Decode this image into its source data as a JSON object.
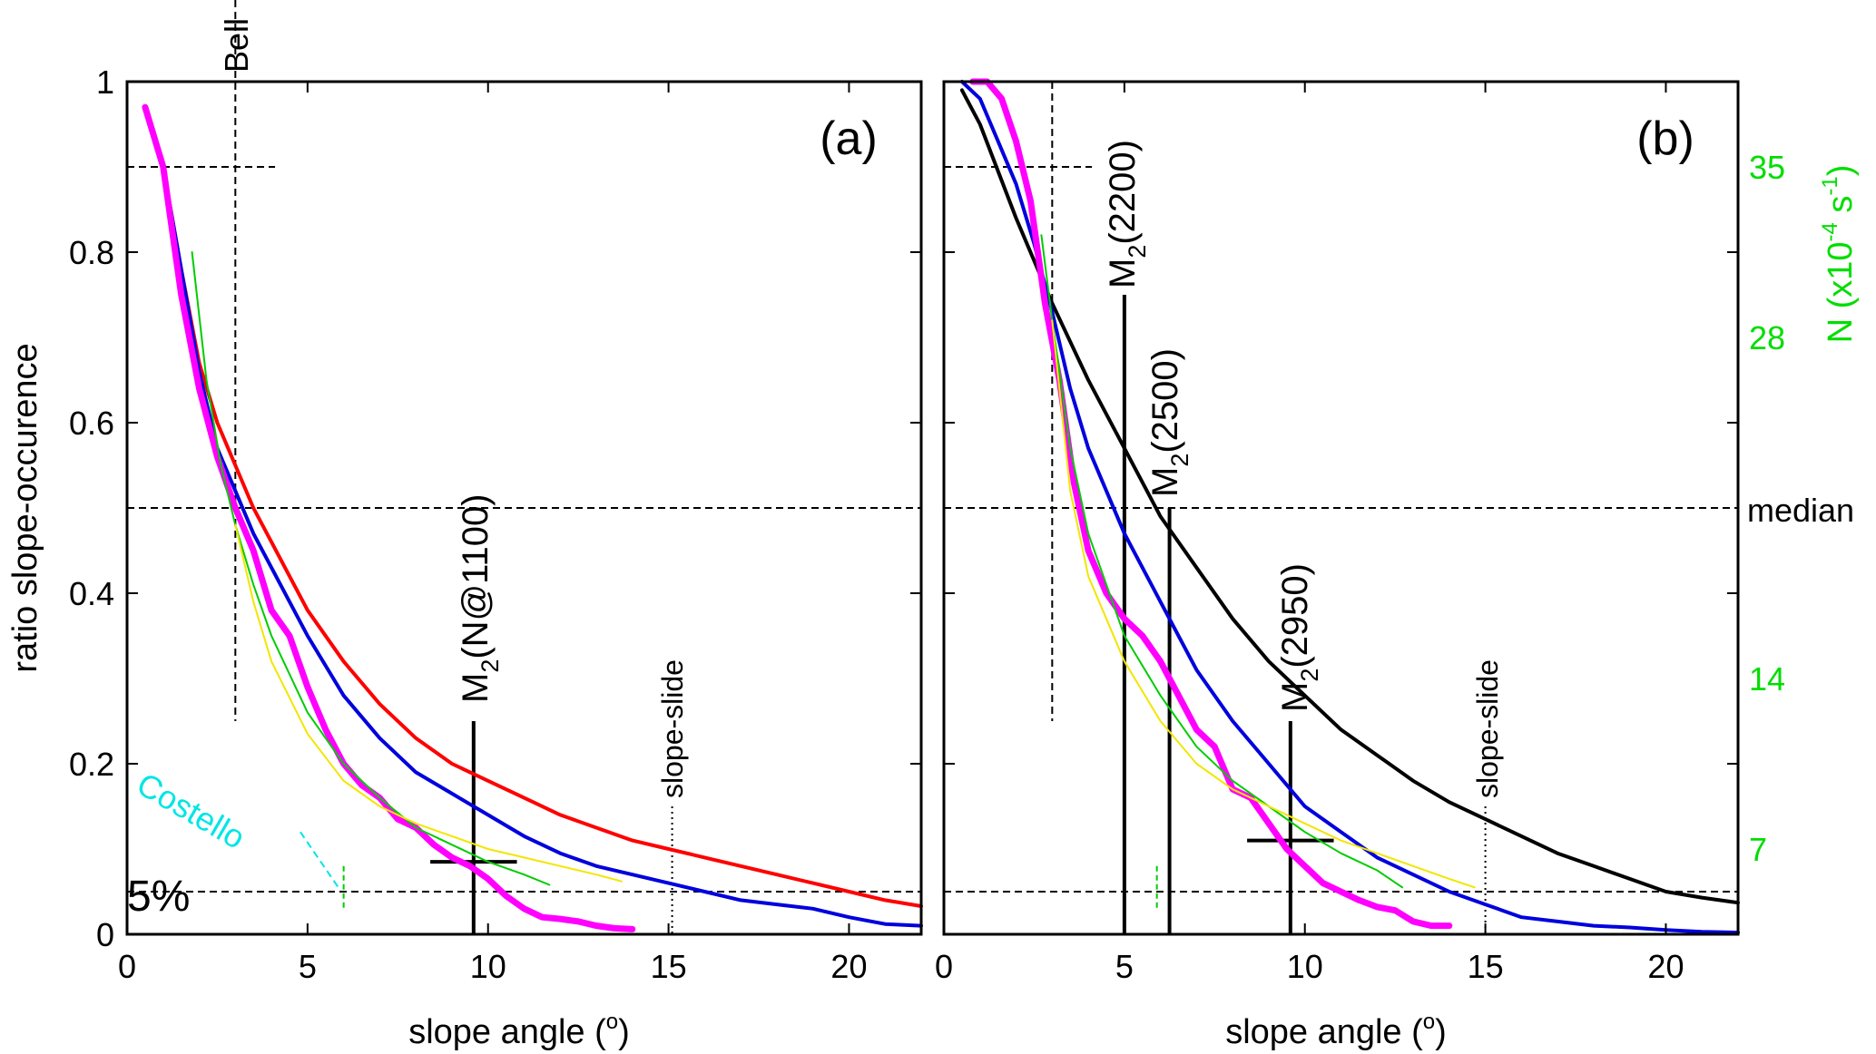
{
  "chart_data": [
    {
      "type": "line",
      "panel_label": "(a)",
      "xlabel": "slope angle (o)",
      "ylabel": "ratio slope-occurence",
      "xlim": [
        0,
        22
      ],
      "ylim": [
        0,
        1
      ],
      "xticks": [
        "0",
        "5",
        "10",
        "15",
        "20"
      ],
      "yticks": [
        "0",
        "0.2",
        "0.4",
        "0.6",
        "0.8",
        "1"
      ],
      "grid": false,
      "series": [
        {
          "color": "#ff0000",
          "x": [
            0.5,
            1,
            1.5,
            2,
            2.5,
            3,
            3.5,
            4,
            5,
            6,
            7,
            8,
            9,
            10,
            11,
            12,
            13,
            14,
            15,
            16,
            17,
            18,
            19,
            20,
            21,
            22
          ],
          "y": [
            0.97,
            0.9,
            0.78,
            0.67,
            0.6,
            0.55,
            0.5,
            0.46,
            0.38,
            0.32,
            0.27,
            0.23,
            0.2,
            0.18,
            0.16,
            0.14,
            0.125,
            0.11,
            0.1,
            0.09,
            0.08,
            0.07,
            0.06,
            0.05,
            0.04,
            0.033
          ]
        },
        {
          "color": "#0000dd",
          "x": [
            0.5,
            1,
            1.5,
            2,
            2.5,
            3,
            3.5,
            4,
            5,
            6,
            7,
            8,
            9,
            10,
            11,
            12,
            13,
            14,
            15,
            16,
            17,
            18,
            19,
            20,
            21,
            22
          ],
          "y": [
            0.97,
            0.9,
            0.78,
            0.66,
            0.57,
            0.52,
            0.47,
            0.43,
            0.35,
            0.28,
            0.23,
            0.19,
            0.165,
            0.14,
            0.115,
            0.095,
            0.08,
            0.07,
            0.06,
            0.05,
            0.04,
            0.035,
            0.03,
            0.02,
            0.012,
            0.01
          ]
        },
        {
          "color": "#ff00ff",
          "x": [
            0.5,
            1,
            1.5,
            2,
            2.5,
            3,
            3.5,
            4,
            4.5,
            5,
            5.5,
            6,
            6.5,
            7,
            7.5,
            8,
            8.5,
            9,
            9.5,
            10,
            10.5,
            11,
            11.5,
            12,
            12.5,
            13,
            13.5,
            14
          ],
          "y": [
            0.97,
            0.9,
            0.75,
            0.64,
            0.56,
            0.5,
            0.45,
            0.38,
            0.35,
            0.29,
            0.24,
            0.2,
            0.175,
            0.16,
            0.135,
            0.125,
            0.105,
            0.09,
            0.08,
            0.065,
            0.045,
            0.03,
            0.02,
            0.018,
            0.015,
            0.01,
            0.007,
            0.006
          ]
        },
        {
          "color": "#00cc00",
          "x": [
            1.8,
            2.2,
            2.6,
            3,
            3.5,
            4,
            5,
            6,
            7,
            8,
            9,
            10,
            11,
            11.7
          ],
          "y": [
            0.8,
            0.65,
            0.55,
            0.48,
            0.41,
            0.35,
            0.26,
            0.2,
            0.16,
            0.125,
            0.105,
            0.085,
            0.07,
            0.058
          ]
        },
        {
          "color": "#f2e600",
          "x": [
            3,
            3.5,
            4,
            5,
            6,
            7,
            8,
            9,
            10,
            11,
            12,
            13,
            13.7
          ],
          "y": [
            0.48,
            0.39,
            0.32,
            0.235,
            0.18,
            0.15,
            0.13,
            0.115,
            0.1,
            0.09,
            0.08,
            0.07,
            0.062
          ]
        }
      ],
      "annotations": {
        "bell": "Bell",
        "costello": "Costello",
        "five_percent": "5%",
        "m2_main": "M",
        "m2_sub": "2",
        "m2_rest": "(N@1100)",
        "slope_slide": "slope-slide",
        "m2_line_x": 9.6,
        "m2_line_ymax": 0.25,
        "m2_cross_y": 0.085,
        "slope_slide_x": 15.1,
        "bell_x": 3
      }
    },
    {
      "type": "line",
      "panel_label": "(b)",
      "xlabel": "slope angle (o)",
      "right_ylabel": "N (x10-4 s-1)",
      "xlim": [
        0,
        22
      ],
      "ylim": [
        0,
        1
      ],
      "xticks": [
        "0",
        "5",
        "10",
        "15",
        "20"
      ],
      "right_yticks": [
        {
          "label": "7",
          "y": 0.1
        },
        {
          "label": "14",
          "y": 0.3
        },
        {
          "label": "28",
          "y": 0.7
        },
        {
          "label": "35",
          "y": 0.9
        }
      ],
      "median_label": "median",
      "median_y": 0.5,
      "grid": false,
      "series": [
        {
          "color": "#000000",
          "x": [
            0.5,
            1,
            2,
            3,
            4,
            5,
            6,
            7,
            8,
            9,
            10,
            11,
            12,
            13,
            14,
            15,
            16,
            17,
            18,
            19,
            20,
            21,
            22
          ],
          "y": [
            0.99,
            0.95,
            0.84,
            0.74,
            0.65,
            0.57,
            0.49,
            0.43,
            0.37,
            0.32,
            0.28,
            0.24,
            0.21,
            0.18,
            0.155,
            0.135,
            0.115,
            0.095,
            0.08,
            0.065,
            0.05,
            0.043,
            0.037
          ]
        },
        {
          "color": "#0000dd",
          "x": [
            0.5,
            1,
            1.5,
            2,
            2.5,
            3,
            3.5,
            4,
            5,
            6,
            7,
            8,
            9,
            10,
            11,
            12,
            13,
            14,
            15,
            16,
            17,
            18,
            19,
            20,
            21,
            22
          ],
          "y": [
            1.0,
            0.98,
            0.93,
            0.88,
            0.81,
            0.73,
            0.64,
            0.57,
            0.47,
            0.39,
            0.31,
            0.25,
            0.2,
            0.15,
            0.12,
            0.09,
            0.07,
            0.05,
            0.035,
            0.02,
            0.015,
            0.01,
            0.008,
            0.005,
            0.003,
            0.002
          ]
        },
        {
          "color": "#ff00ff",
          "x": [
            0.8,
            1.2,
            1.6,
            2,
            2.4,
            2.8,
            3.2,
            3.6,
            4,
            4.5,
            5,
            5.5,
            6,
            6.5,
            7,
            7.5,
            8,
            8.5,
            9,
            9.5,
            10,
            10.5,
            11,
            11.5,
            12,
            12.5,
            13,
            13.5,
            14
          ],
          "y": [
            1.0,
            1.0,
            0.98,
            0.93,
            0.86,
            0.74,
            0.65,
            0.53,
            0.45,
            0.4,
            0.37,
            0.35,
            0.32,
            0.28,
            0.24,
            0.22,
            0.17,
            0.16,
            0.13,
            0.1,
            0.08,
            0.06,
            0.05,
            0.04,
            0.032,
            0.028,
            0.015,
            0.01,
            0.01
          ]
        },
        {
          "color": "#00cc00",
          "x": [
            2.7,
            3,
            3.5,
            4,
            5,
            6,
            7,
            8,
            9,
            10,
            11,
            12,
            12.7
          ],
          "y": [
            0.82,
            0.72,
            0.57,
            0.47,
            0.35,
            0.28,
            0.22,
            0.18,
            0.15,
            0.12,
            0.095,
            0.075,
            0.055
          ]
        },
        {
          "color": "#f2e600",
          "x": [
            3,
            3.5,
            4,
            5,
            6,
            7,
            8,
            9,
            10,
            11,
            12,
            13,
            14,
            14.7
          ],
          "y": [
            0.72,
            0.52,
            0.42,
            0.32,
            0.25,
            0.2,
            0.17,
            0.15,
            0.13,
            0.11,
            0.095,
            0.08,
            0.065,
            0.055
          ]
        }
      ],
      "annotations": {
        "m2_main": "M",
        "m2_sub": "2",
        "labels": [
          "(2200)",
          "(2500)",
          "(2950)"
        ],
        "m2_lines": [
          {
            "x": 5.0,
            "ymax": 0.75
          },
          {
            "x": 6.25,
            "ymax": 0.5
          },
          {
            "x": 9.6,
            "ymax": 0.25
          }
        ],
        "cross_y": 0.11,
        "slope_slide": "slope-slide",
        "slope_slide_x": 15.0,
        "bell_x": 3
      }
    }
  ],
  "colors": {
    "axis": "#000000",
    "green_axis": "#00dd00",
    "costello": "#00e5e5"
  }
}
